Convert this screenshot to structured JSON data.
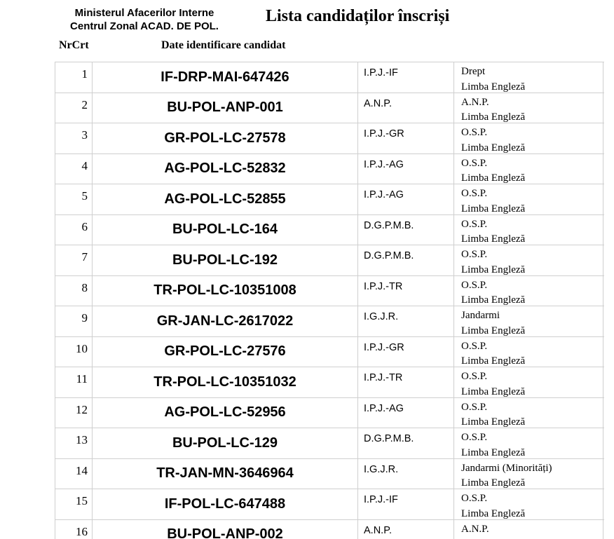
{
  "header": {
    "org_line1": "Ministerul Afacerilor Interne",
    "org_line2": "Centrul Zonal ACAD. DE POL.",
    "title": "Lista candidaților înscriși"
  },
  "table": {
    "col_headers": {
      "nrcrt": "NrCrt",
      "candidate": "Date identificare candidat"
    },
    "rows": [
      {
        "nr": "1",
        "id": "IF-DRP-MAI-647426",
        "unit": "I.P.J.-IF",
        "line1": "Drept",
        "line2": "Limba Engleză"
      },
      {
        "nr": "2",
        "id": "BU-POL-ANP-001",
        "unit": "A.N.P.",
        "line1": "A.N.P.",
        "line2": "Limba Engleză"
      },
      {
        "nr": "3",
        "id": "GR-POL-LC-27578",
        "unit": "I.P.J.-GR",
        "line1": "O.S.P.",
        "line2": "Limba Engleză"
      },
      {
        "nr": "4",
        "id": "AG-POL-LC-52832",
        "unit": "I.P.J.-AG",
        "line1": "O.S.P.",
        "line2": "Limba Engleză"
      },
      {
        "nr": "5",
        "id": "AG-POL-LC-52855",
        "unit": "I.P.J.-AG",
        "line1": "O.S.P.",
        "line2": "Limba Engleză"
      },
      {
        "nr": "6",
        "id": "BU-POL-LC-164",
        "unit": "D.G.P.M.B.",
        "line1": "O.S.P.",
        "line2": "Limba Engleză"
      },
      {
        "nr": "7",
        "id": "BU-POL-LC-192",
        "unit": "D.G.P.M.B.",
        "line1": "O.S.P.",
        "line2": "Limba Engleză"
      },
      {
        "nr": "8",
        "id": "TR-POL-LC-10351008",
        "unit": "I.P.J.-TR",
        "line1": "O.S.P.",
        "line2": "Limba Engleză"
      },
      {
        "nr": "9",
        "id": "GR-JAN-LC-2617022",
        "unit": "I.G.J.R.",
        "line1": "Jandarmi",
        "line2": "Limba Engleză"
      },
      {
        "nr": "10",
        "id": "GR-POL-LC-27576",
        "unit": "I.P.J.-GR",
        "line1": "O.S.P.",
        "line2": "Limba Engleză"
      },
      {
        "nr": "11",
        "id": "TR-POL-LC-10351032",
        "unit": "I.P.J.-TR",
        "line1": "O.S.P.",
        "line2": "Limba Engleză"
      },
      {
        "nr": "12",
        "id": "AG-POL-LC-52956",
        "unit": "I.P.J.-AG",
        "line1": "O.S.P.",
        "line2": "Limba Engleză"
      },
      {
        "nr": "13",
        "id": "BU-POL-LC-129",
        "unit": "D.G.P.M.B.",
        "line1": "O.S.P.",
        "line2": "Limba Engleză"
      },
      {
        "nr": "14",
        "id": "TR-JAN-MN-3646964",
        "unit": "I.G.J.R.",
        "line1": "Jandarmi (Minorități)",
        "line2": "Limba Engleză"
      },
      {
        "nr": "15",
        "id": "IF-POL-LC-647488",
        "unit": "I.P.J.-IF",
        "line1": "O.S.P.",
        "line2": "Limba Engleză"
      },
      {
        "nr": "16",
        "id": "BU-POL-ANP-002",
        "unit": "A.N.P.",
        "line1": "A.N.P.",
        "line2": ""
      }
    ]
  },
  "colors": {
    "grid": "#cfcfcf",
    "text": "#000000",
    "background": "#ffffff"
  }
}
